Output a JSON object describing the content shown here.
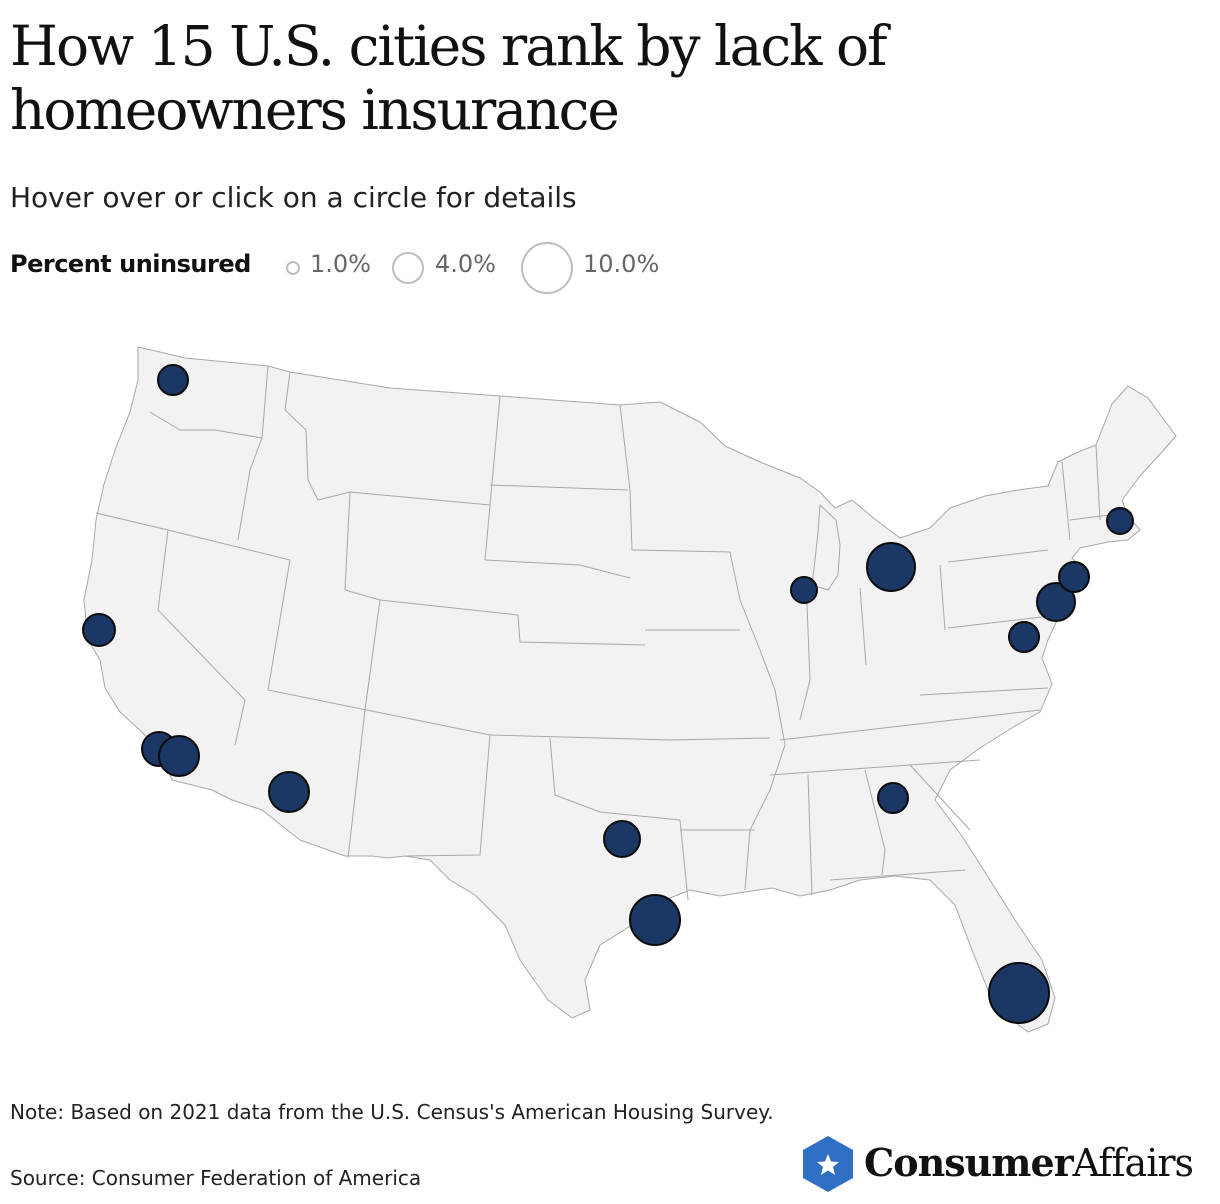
{
  "title": "How 15 U.S. cities rank by lack of homeowners insurance",
  "subtitle": "Hover over or click on a circle for details",
  "legend": {
    "title": "Percent uninsured",
    "items": [
      {
        "label": "1.0%",
        "value": 1.0
      },
      {
        "label": "4.0%",
        "value": 4.0
      },
      {
        "label": "10.0%",
        "value": 10.0
      }
    ]
  },
  "colors": {
    "circle_fill": "#1b3763",
    "circle_stroke": "#0b0b0b",
    "map_fill": "#f2f2f2",
    "map_stroke": "#a8a8a8",
    "brand_blue": "#2f6fc4"
  },
  "map": {
    "region": "Contiguous United States",
    "marker_count": 15,
    "marker_note": "Circle area proportional to percent uninsured; city names and values shown only on hover"
  },
  "note": "Note: Based on 2021 data from the U.S. Census's American Housing Survey.",
  "source": "Source: Consumer Federation of America",
  "brand": {
    "icon": "star-hexagon-icon",
    "name_bold": "Consumer",
    "name_light": "Affairs"
  }
}
